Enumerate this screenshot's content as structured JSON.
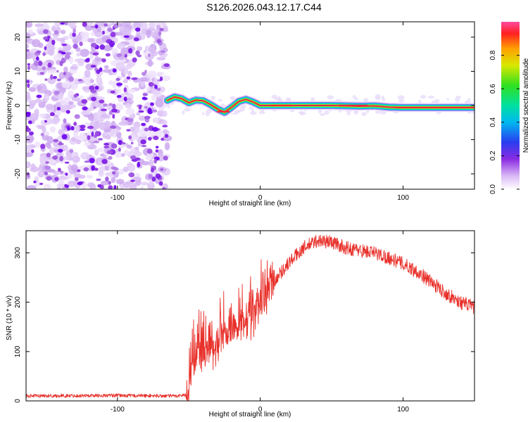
{
  "title": "S126.2026.043.12.17.C44",
  "colors": {
    "snr_line": "#e8302a",
    "axis": "#000000",
    "track_core": "#e02050",
    "noise": "#8a2be2"
  },
  "chart_data": [
    {
      "type": "heatmap",
      "name": "spectrogram",
      "xlabel": "Height of straight line (km)",
      "ylabel": "Frequency (Hz)",
      "xlim": [
        -164,
        150
      ],
      "ylim": [
        -24.5,
        24.5
      ],
      "x_ticks": [
        -100,
        0,
        100
      ],
      "x_tick_labels": [
        "-100",
        "0",
        "100"
      ],
      "y_ticks": [
        -20,
        -10,
        0,
        10,
        20
      ],
      "y_tick_labels": [
        "-20",
        "-10",
        "0",
        "10",
        "20"
      ],
      "noise_region_x": [
        -164,
        -65
      ],
      "track_points": [
        {
          "x": -65,
          "y": 1.5
        },
        {
          "x": -60,
          "y": 2.5
        },
        {
          "x": -55,
          "y": 2.0
        },
        {
          "x": -50,
          "y": 0.8
        },
        {
          "x": -45,
          "y": 1.6
        },
        {
          "x": -40,
          "y": 1.4
        },
        {
          "x": -35,
          "y": 0.3
        },
        {
          "x": -30,
          "y": -1.0
        },
        {
          "x": -25,
          "y": -2.0
        },
        {
          "x": -20,
          "y": -0.5
        },
        {
          "x": -15,
          "y": 1.2
        },
        {
          "x": -10,
          "y": 1.8
        },
        {
          "x": -5,
          "y": 1.0
        },
        {
          "x": 0,
          "y": 0.0
        },
        {
          "x": 10,
          "y": 0.0
        },
        {
          "x": 20,
          "y": 0.0
        },
        {
          "x": 30,
          "y": 0.0
        },
        {
          "x": 40,
          "y": 0.0
        },
        {
          "x": 50,
          "y": 0.0
        },
        {
          "x": 60,
          "y": -0.1
        },
        {
          "x": 70,
          "y": -0.2
        },
        {
          "x": 80,
          "y": -0.1
        },
        {
          "x": 90,
          "y": -0.5
        },
        {
          "x": 100,
          "y": -0.6
        },
        {
          "x": 110,
          "y": -0.6
        },
        {
          "x": 120,
          "y": -0.6
        },
        {
          "x": 130,
          "y": -0.6
        },
        {
          "x": 140,
          "y": -0.6
        },
        {
          "x": 150,
          "y": -0.6
        }
      ],
      "colorbar": {
        "label": "Normalized spectral amplitude",
        "range": [
          0.0,
          1.0
        ],
        "ticks": [
          0.0,
          0.2,
          0.4,
          0.6,
          0.8
        ],
        "tick_labels": [
          "0.0",
          "0.2",
          "0.4",
          "0.6",
          "0.8"
        ]
      }
    },
    {
      "type": "line",
      "name": "snr",
      "xlabel": "Height of straight line (km)",
      "ylabel": "SNR (10 * v/v)",
      "xlim": [
        -164,
        150
      ],
      "ylim": [
        0,
        345
      ],
      "x_ticks": [
        -100,
        0,
        100
      ],
      "x_tick_labels": [
        "-100",
        "0",
        "100"
      ],
      "y_ticks": [
        0,
        100,
        200,
        300
      ],
      "y_tick_labels": [
        "0",
        "100",
        "200",
        "300"
      ],
      "series": [
        {
          "name": "SNR",
          "points": [
            {
              "x": -164,
              "y": 10
            },
            {
              "x": -100,
              "y": 11
            },
            {
              "x": -60,
              "y": 10
            },
            {
              "x": -52,
              "y": 12
            },
            {
              "x": -48,
              "y": 60
            },
            {
              "x": -45,
              "y": 95
            },
            {
              "x": -40,
              "y": 90
            },
            {
              "x": -30,
              "y": 120
            },
            {
              "x": -20,
              "y": 150
            },
            {
              "x": -10,
              "y": 170
            },
            {
              "x": 0,
              "y": 200
            },
            {
              "x": 10,
              "y": 245
            },
            {
              "x": 20,
              "y": 280
            },
            {
              "x": 30,
              "y": 310
            },
            {
              "x": 40,
              "y": 325
            },
            {
              "x": 50,
              "y": 322
            },
            {
              "x": 60,
              "y": 310
            },
            {
              "x": 70,
              "y": 305
            },
            {
              "x": 80,
              "y": 300
            },
            {
              "x": 90,
              "y": 290
            },
            {
              "x": 100,
              "y": 278
            },
            {
              "x": 110,
              "y": 262
            },
            {
              "x": 120,
              "y": 240
            },
            {
              "x": 130,
              "y": 218
            },
            {
              "x": 140,
              "y": 200
            },
            {
              "x": 150,
              "y": 190
            }
          ]
        }
      ]
    }
  ]
}
